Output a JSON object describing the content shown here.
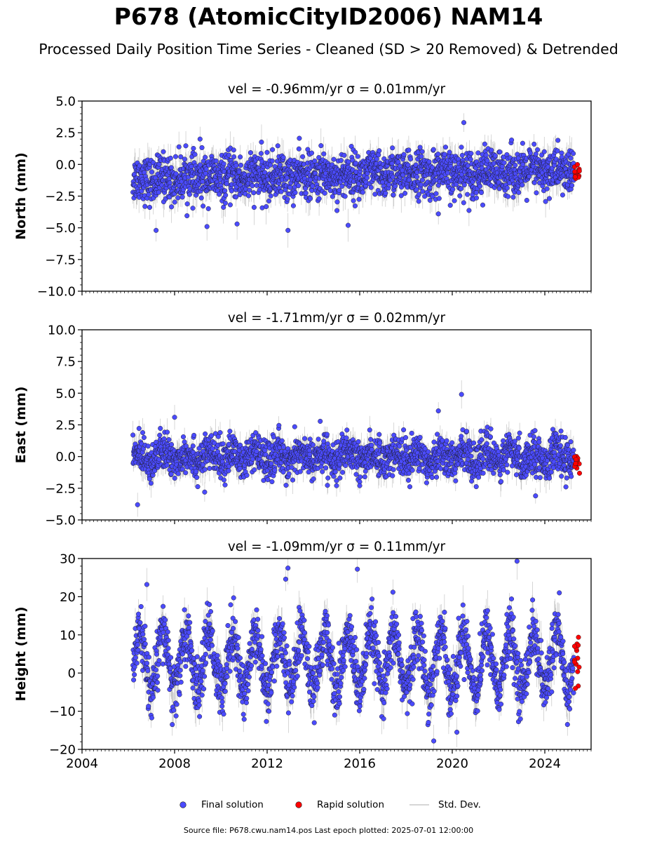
{
  "figure": {
    "title": "P678 (AtomicCityID2006) NAM14",
    "subtitle": "Processed Daily Position Time Series - Cleaned (SD > 20 Removed) & Detrended",
    "footer": "Source file: P678.cwu.nam14.pos  Last epoch plotted: 2025-07-01 12:00:00"
  },
  "legend": {
    "items": [
      {
        "label": "Final solution",
        "symbol": "dot",
        "color": "#4b4bff"
      },
      {
        "label": "Rapid solution",
        "symbol": "dot",
        "color": "#ff0000"
      },
      {
        "label": "Std. Dev.",
        "symbol": "line",
        "color": "#c8c8c8"
      }
    ]
  },
  "colors": {
    "final": "#4b4bff",
    "rapid": "#ff0000",
    "stddev": "#808080",
    "edge": "#1a1a1a"
  },
  "chart_data": [
    {
      "type": "scatter",
      "panel_title": "vel = -0.96mm/yr   σ = 0.01mm/yr",
      "ylabel": "North (mm)",
      "xlim": [
        2004.0,
        2026.0
      ],
      "ylim": [
        -10.0,
        5.0
      ],
      "yticks": [
        -10.0,
        -7.5,
        -5.0,
        -2.5,
        0.0,
        2.5,
        5.0
      ],
      "ytick_labels": [
        "−10.0",
        "−7.5",
        "−5.0",
        "−2.5",
        "0.0",
        "2.5",
        "5.0"
      ],
      "xticks": [
        2004,
        2008,
        2012,
        2016,
        2020,
        2024
      ],
      "show_xtick_labels": false,
      "series": [
        {
          "name": "Final solution",
          "start": 2006.2,
          "end": 2025.25,
          "mean": -1.2,
          "mean_end": -0.5,
          "scatter_sd": 0.9,
          "seasonal_amp": 0.2,
          "sigma_mm": 1.2
        },
        {
          "name": "Rapid solution",
          "start": 2025.28,
          "end": 2025.5,
          "mean": -0.7,
          "scatter_sd": 0.35
        }
      ],
      "outliers": [
        [
          2020.5,
          3.3
        ],
        [
          2007.2,
          -5.2
        ],
        [
          2012.9,
          -5.2
        ],
        [
          2009.4,
          -4.9
        ],
        [
          2010.7,
          -4.7
        ],
        [
          2015.5,
          -4.8
        ],
        [
          2009.1,
          2.0
        ],
        [
          2019.4,
          -3.9
        ]
      ]
    },
    {
      "type": "scatter",
      "panel_title": "vel = -1.71mm/yr   σ = 0.02mm/yr",
      "ylabel": "East (mm)",
      "xlim": [
        2004.0,
        2026.0
      ],
      "ylim": [
        -5.0,
        10.0
      ],
      "yticks": [
        -5.0,
        -2.5,
        0.0,
        2.5,
        5.0,
        7.5,
        10.0
      ],
      "ytick_labels": [
        "−5.0",
        "−2.5",
        "0.0",
        "2.5",
        "5.0",
        "7.5",
        "10.0"
      ],
      "xticks": [
        2004,
        2008,
        2012,
        2016,
        2020,
        2024
      ],
      "show_xtick_labels": false,
      "series": [
        {
          "name": "Final solution",
          "start": 2006.2,
          "end": 2025.25,
          "mean": 0.0,
          "mean_end": 0.0,
          "scatter_sd": 0.75,
          "seasonal_amp": 0.35,
          "sigma_mm": 1.0
        },
        {
          "name": "Rapid solution",
          "start": 2025.28,
          "end": 2025.5,
          "mean": -0.5,
          "scatter_sd": 0.45
        }
      ],
      "outliers": [
        [
          2020.4,
          4.9
        ],
        [
          2019.4,
          3.6
        ],
        [
          2006.4,
          -3.8
        ],
        [
          2023.6,
          -3.1
        ],
        [
          2015.0,
          -2.3
        ],
        [
          2016.0,
          -2.3
        ],
        [
          2009.3,
          -2.8
        ],
        [
          2008.0,
          3.1
        ]
      ]
    },
    {
      "type": "scatter",
      "panel_title": "vel = -1.09mm/yr   σ = 0.11mm/yr",
      "ylabel": "Height (mm)",
      "xlim": [
        2004.0,
        2026.0
      ],
      "ylim": [
        -20,
        30
      ],
      "yticks": [
        -20,
        -10,
        0,
        10,
        20,
        30
      ],
      "ytick_labels": [
        "−20",
        "−10",
        "0",
        "10",
        "20",
        "30"
      ],
      "xticks": [
        2004,
        2008,
        2012,
        2016,
        2020,
        2024
      ],
      "xtick_labels": [
        "2004",
        "2008",
        "2012",
        "2016",
        "2020",
        "2024"
      ],
      "show_xtick_labels": true,
      "series": [
        {
          "name": "Final solution",
          "start": 2006.2,
          "end": 2025.25,
          "mean": 3.0,
          "mean_end": 3.0,
          "scatter_sd": 3.6,
          "seasonal_amp": 7.5,
          "sigma_mm": 4.5
        },
        {
          "name": "Rapid solution",
          "start": 2025.28,
          "end": 2025.5,
          "mean": 3.0,
          "scatter_sd": 3.2
        }
      ],
      "outliers": [
        [
          2022.8,
          29.3
        ],
        [
          2012.9,
          27.5
        ],
        [
          2015.9,
          27.2
        ],
        [
          2012.8,
          24.6
        ],
        [
          2006.8,
          23.2
        ],
        [
          2019.2,
          -17.8
        ],
        [
          2020.2,
          -15.5
        ],
        [
          2007.9,
          -13.5
        ]
      ]
    }
  ]
}
